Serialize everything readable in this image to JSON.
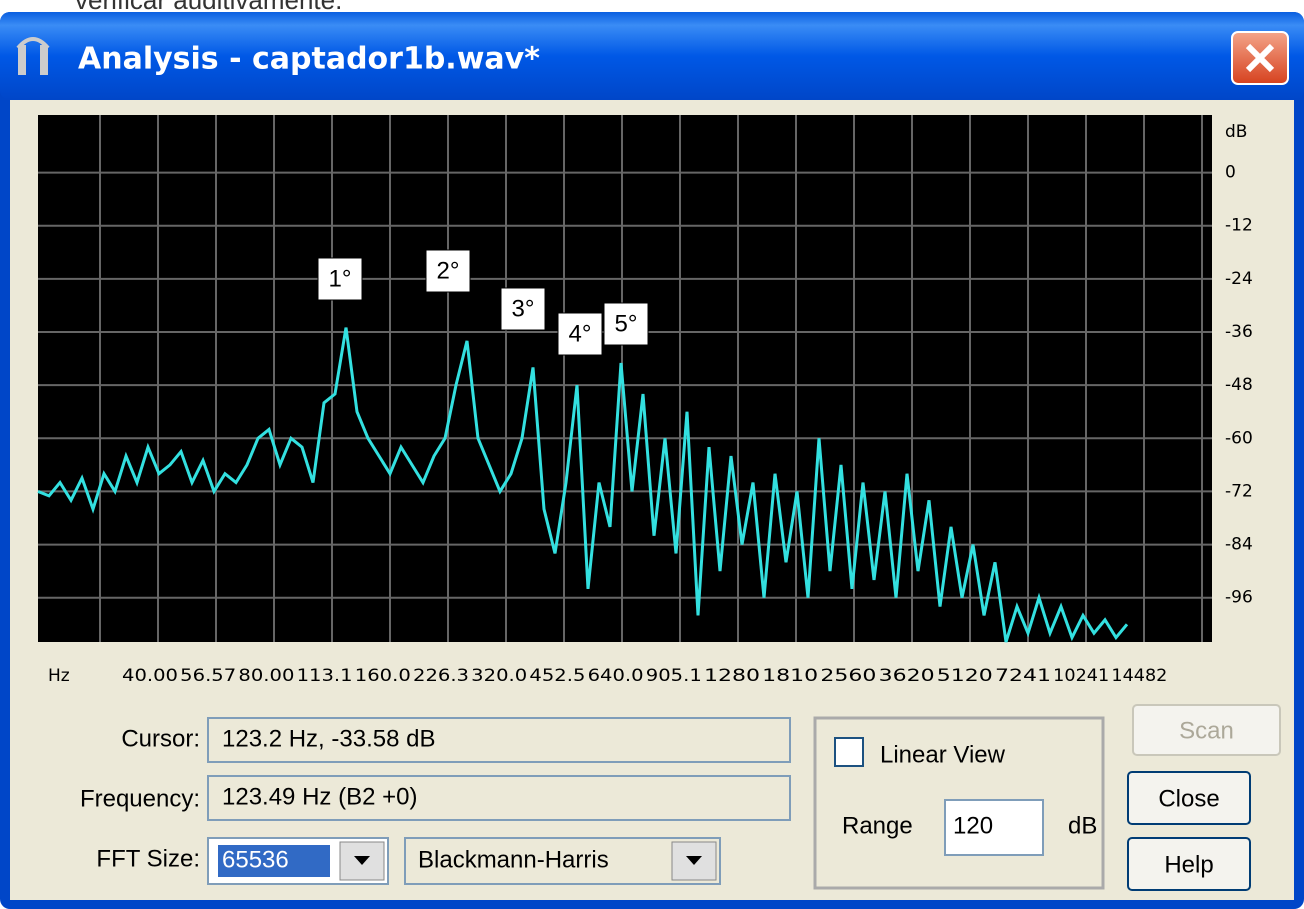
{
  "caption": "verificar auditivamente.",
  "window": {
    "title": "Analysis - captador1b.wav*"
  },
  "plot": {
    "y_unit": "dB",
    "x_unit": "Hz",
    "ylim": [
      -106,
      13
    ],
    "yticks": [
      0,
      -12,
      -24,
      -36,
      -48,
      -60,
      -72,
      -84,
      -96
    ],
    "xtick_labels": [
      "40.00",
      "56.57",
      "80.00",
      "113.1",
      "160.0",
      "226.3",
      "320.0",
      "452.5",
      "640.0",
      "905.1",
      "1280",
      "1810",
      "2560",
      "3620",
      "5120",
      "7241",
      "10241",
      "14482"
    ],
    "color": "#33e0e0",
    "grid": true,
    "trace_values": [
      -72,
      -73,
      -70,
      -74,
      -69,
      -76,
      -68,
      -72,
      -64,
      -70,
      -62,
      -68,
      -66,
      -63,
      -70,
      -65,
      -72,
      -68,
      -70,
      -66,
      -60,
      -58,
      -66,
      -60,
      -62,
      -70,
      -52,
      -50,
      -35,
      -54,
      -60,
      -64,
      -68,
      -62,
      -66,
      -70,
      -64,
      -60,
      -48,
      -38,
      -60,
      -66,
      -72,
      -68,
      -60,
      -44,
      -76,
      -86,
      -70,
      -48,
      -94,
      -70,
      -80,
      -43,
      -72,
      -50,
      -82,
      -60,
      -86,
      -54,
      -100,
      -62,
      -90,
      -64,
      -84,
      -70,
      -96,
      -68,
      -88,
      -72,
      -96,
      -60,
      -90,
      -66,
      -94,
      -70,
      -92,
      -72,
      -96,
      -68,
      -90,
      -74,
      -98,
      -80,
      -96,
      -84,
      -100,
      -88,
      -106,
      -98,
      -104,
      -96,
      -104,
      -98,
      -105,
      -100,
      -104,
      -101,
      -105,
      -102
    ],
    "peaks": [
      "1°",
      "2°",
      "3°",
      "4°",
      "5°"
    ]
  },
  "controls": {
    "cursor_label": "Cursor:",
    "cursor_value": "123.2 Hz, -33.58 dB",
    "frequency_label": "Frequency:",
    "frequency_value": "123.49 Hz (B2 +0)",
    "fft_label": "FFT Size:",
    "fft_value": "65536",
    "window_func": "Blackmann-Harris",
    "linear_view": "Linear View",
    "range_label": "Range",
    "range_value": "120",
    "range_unit": "dB",
    "scan": "Scan",
    "close": "Close",
    "help": "Help"
  }
}
